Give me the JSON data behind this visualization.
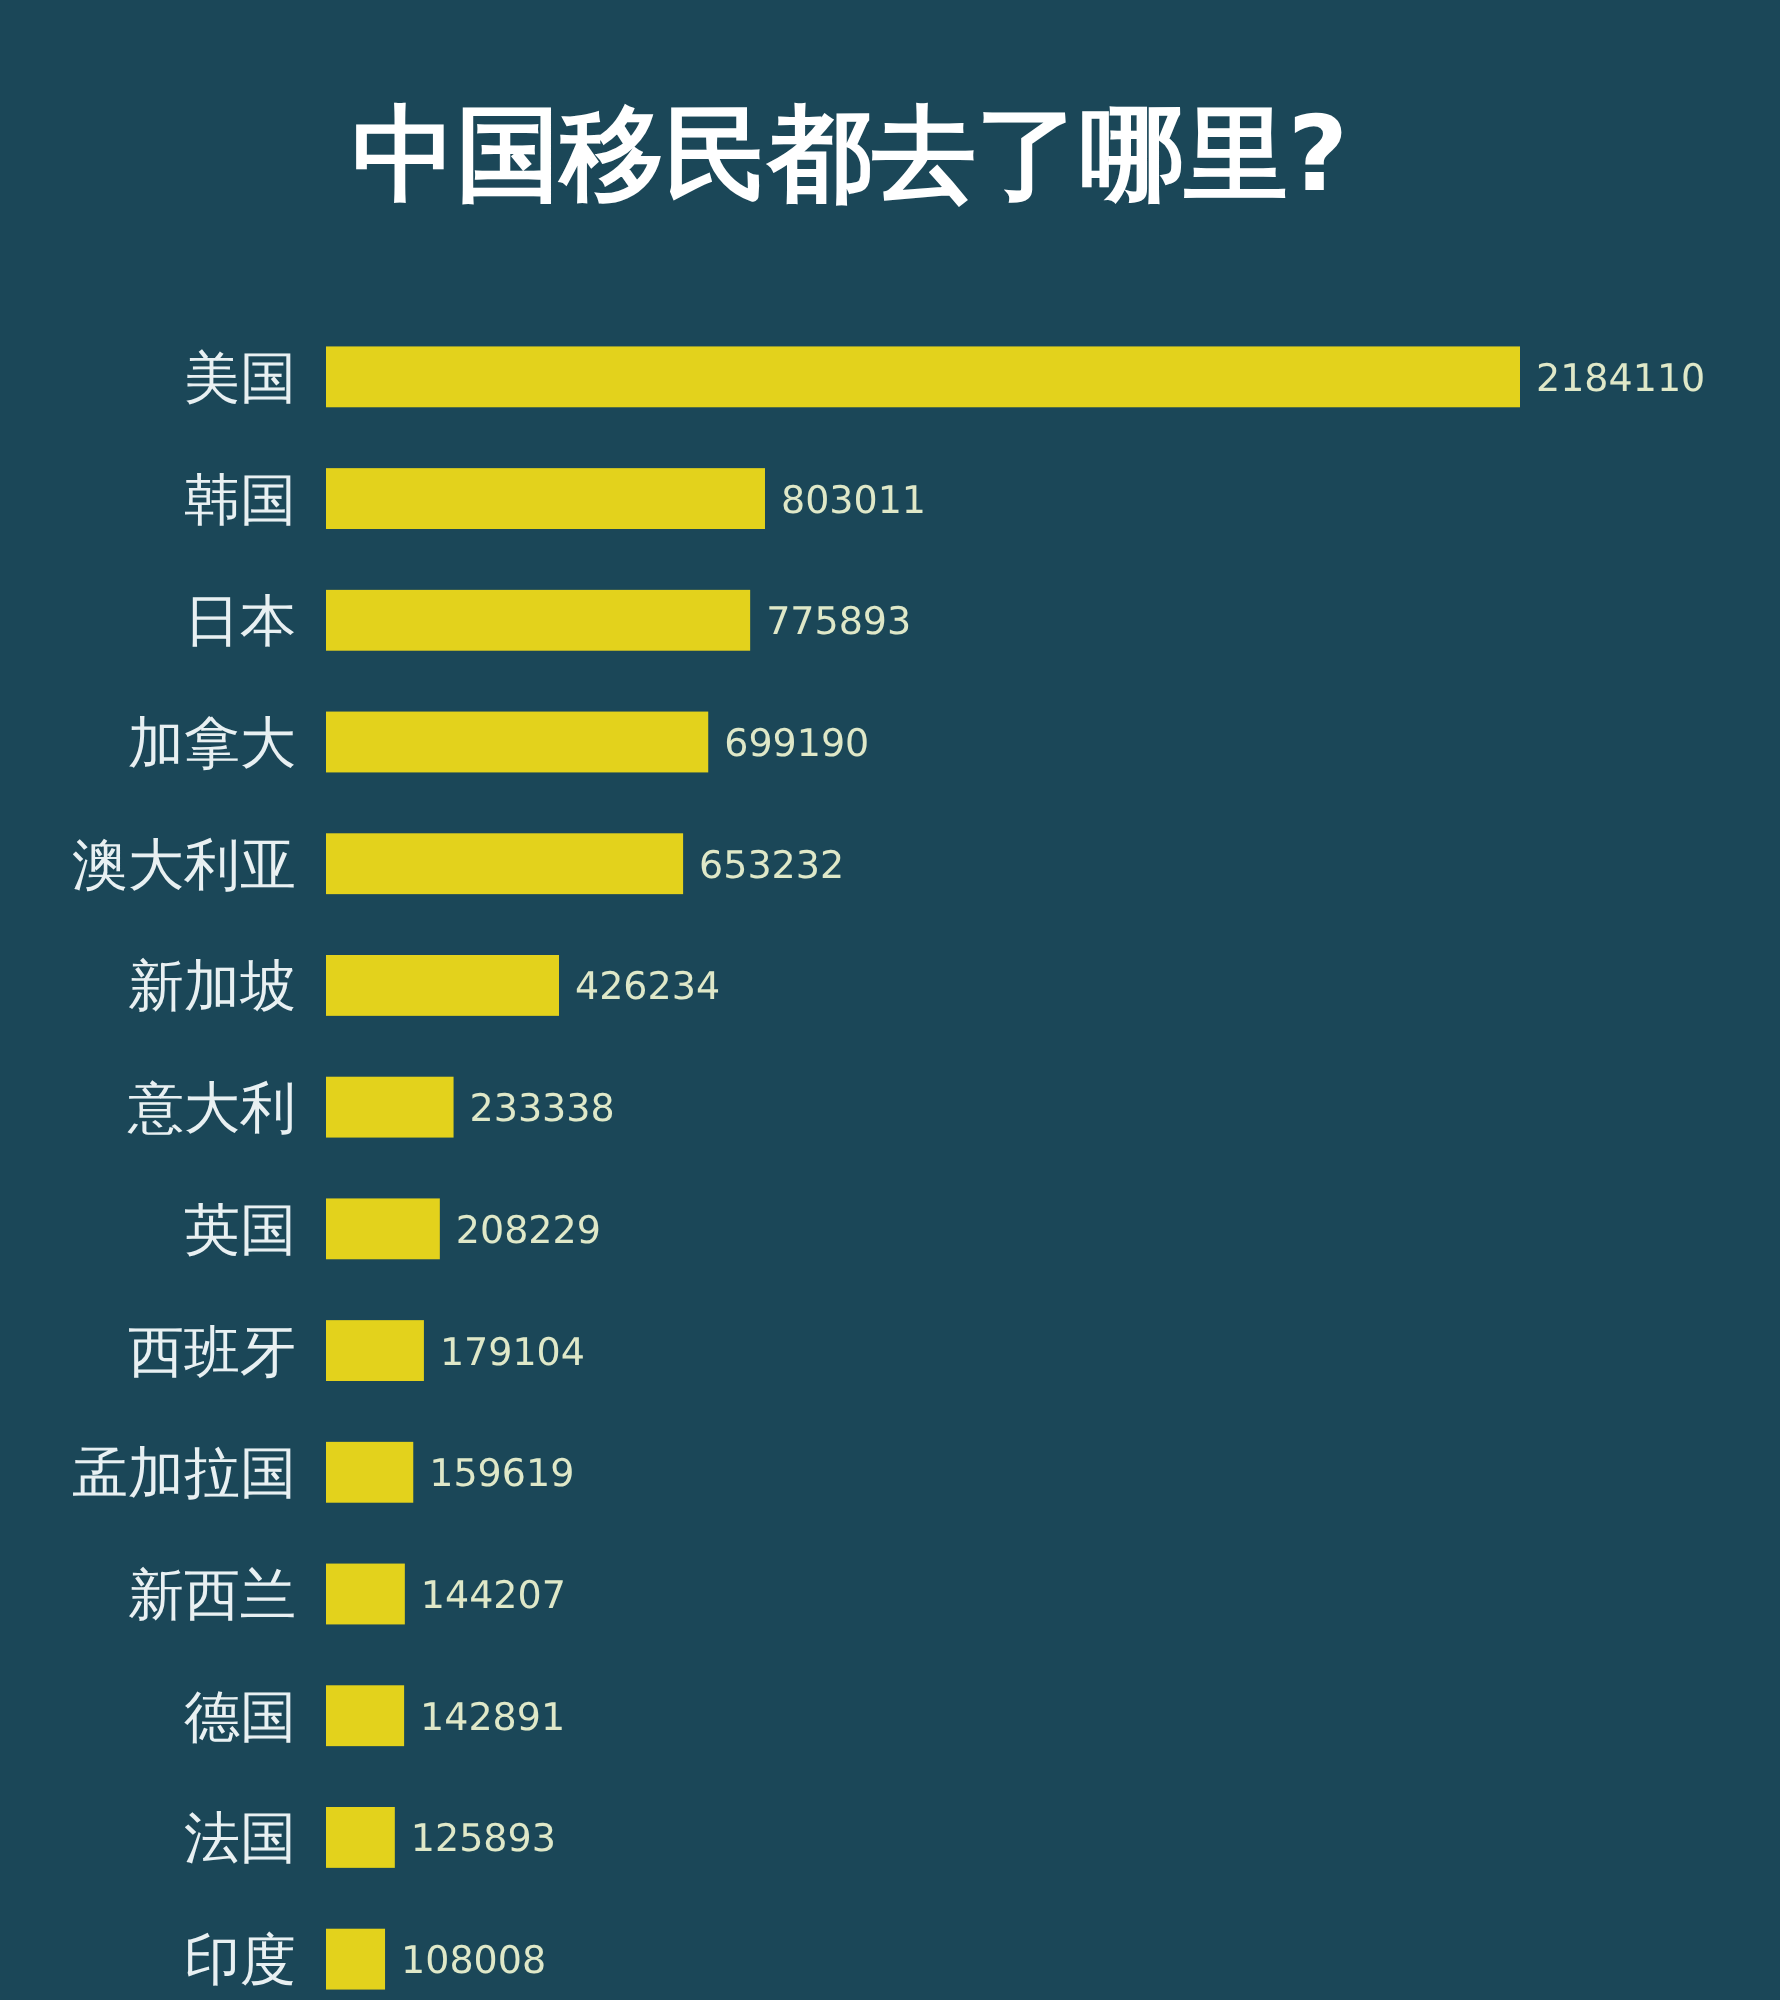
{
  "chart_data": {
    "type": "bar",
    "orientation": "horizontal",
    "title": "中国移民都去了哪里?",
    "categories": [
      "美国",
      "韩国",
      "日本",
      "加拿大",
      "澳大利亚",
      "新加坡",
      "意大利",
      "英国",
      "西班牙",
      "孟加拉国",
      "新西兰",
      "德国",
      "法国",
      "印度"
    ],
    "values": [
      2184110,
      803011,
      775893,
      699190,
      653232,
      426234,
      233338,
      208229,
      179104,
      159619,
      144207,
      142891,
      125893,
      108008
    ],
    "color": "#e3d21c",
    "data_labels": true
  }
}
